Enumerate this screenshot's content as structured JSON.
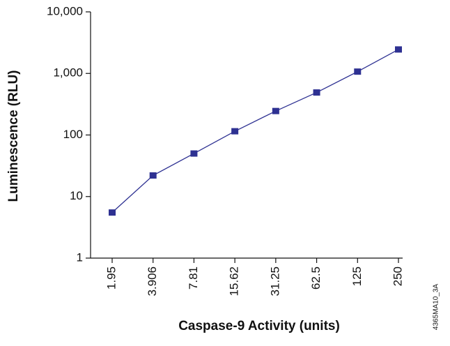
{
  "chart_data": {
    "type": "line",
    "xlabel": "Caspase-9 Activity (units)",
    "ylabel": "Luminescence (RLU)",
    "annotation": "4365MA10_3A",
    "categories": [
      "1.95",
      "3.906",
      "7.81",
      "15.62",
      "31.25",
      "62.5",
      "125",
      "250"
    ],
    "series": [
      {
        "color": "#2e3192",
        "values": [
          5.5,
          22,
          50,
          115,
          245,
          490,
          1070,
          2450
        ]
      }
    ],
    "ylim": [
      1,
      10000
    ],
    "ylog": true,
    "yticks": [
      1,
      10,
      100,
      {
        "value": 1000,
        "label": "1,000"
      },
      {
        "value": 10000,
        "label": "10,000"
      }
    ],
    "grid": false
  }
}
